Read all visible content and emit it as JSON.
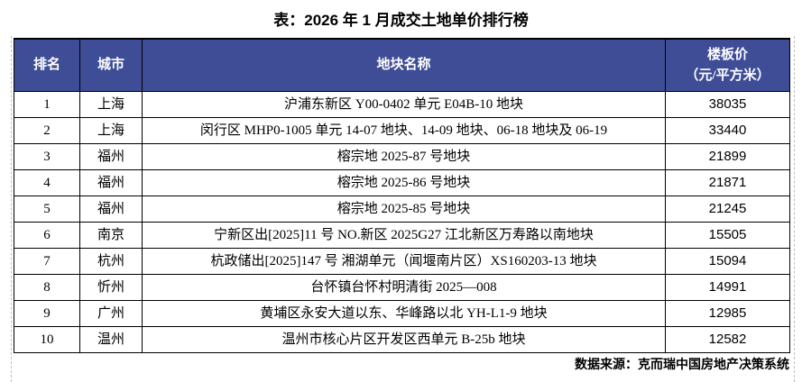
{
  "chart_data": {
    "type": "table",
    "title": "表：2026 年 1 月成交土地单价排行榜",
    "columns": {
      "rank": "排名",
      "city": "城市",
      "name": "地块名称",
      "price": "楼板价\n（元/平方米）"
    },
    "rows": [
      {
        "rank": "1",
        "city": "上海",
        "name": "沪浦东新区 Y00-0402 单元 E04B-10 地块",
        "price": "38035"
      },
      {
        "rank": "2",
        "city": "上海",
        "name": "闵行区 MHP0-1005 单元 14-07 地块、14-09 地块、06-18 地块及 06-19",
        "price": "33440"
      },
      {
        "rank": "3",
        "city": "福州",
        "name": "榕宗地 2025-87 号地块",
        "price": "21899"
      },
      {
        "rank": "4",
        "city": "福州",
        "name": "榕宗地 2025-86 号地块",
        "price": "21871"
      },
      {
        "rank": "5",
        "city": "福州",
        "name": "榕宗地 2025-85 号地块",
        "price": "21245"
      },
      {
        "rank": "6",
        "city": "南京",
        "name": "宁新区出[2025]11 号 NO.新区 2025G27 江北新区万寿路以南地块",
        "price": "15505"
      },
      {
        "rank": "7",
        "city": "杭州",
        "name": "杭政储出[2025]147 号 湘湖单元（闻堰南片区）XS160203-13 地块",
        "price": "15094"
      },
      {
        "rank": "8",
        "city": "忻州",
        "name": "台怀镇台怀村明清街 2025—008",
        "price": "14991"
      },
      {
        "rank": "9",
        "city": "广州",
        "name": "黄埔区永安大道以东、华峰路以北 YH-L1-9 地块",
        "price": "12985"
      },
      {
        "rank": "10",
        "city": "温州",
        "name": "温州市核心片区开发区西单元 B-25b 地块",
        "price": "12582"
      }
    ],
    "source": "数据来源：克而瑞中国房地产决策系统",
    "colors": {
      "header_bg": "#3E4D96",
      "header_text": "#FFFFFF",
      "border": "#000000"
    }
  }
}
